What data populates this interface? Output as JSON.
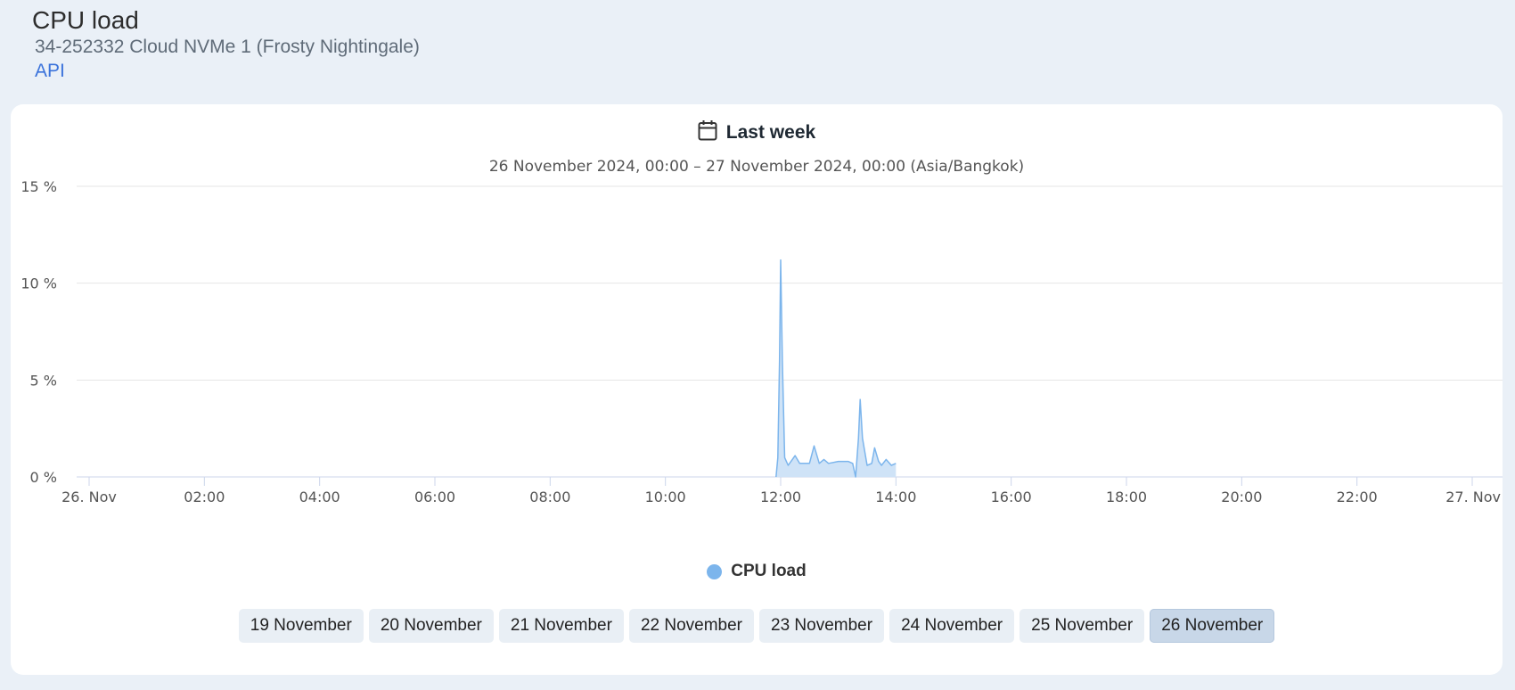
{
  "header": {
    "title": "CPU load",
    "subtitle": "34-252332 Cloud NVMe 1 (Frosty Nightingale)",
    "api_link": "API"
  },
  "range": {
    "icon": "calendar-icon",
    "label": "Last week",
    "sub": "26 November 2024, 00:00 – 27 November 2024, 00:00 (Asia/Bangkok)"
  },
  "colors": {
    "series": "#7cb5ec",
    "series_fill": "#cfe3f7",
    "active_day": "#c8d7e8"
  },
  "chart_data": {
    "type": "area",
    "title": "",
    "xlabel": "",
    "ylabel": "",
    "ylim": [
      0,
      15
    ],
    "xlim": [
      0,
      24
    ],
    "grid": true,
    "legend_placement": "bottom-center",
    "y_ticks": [
      {
        "value": 0,
        "label": "0 %"
      },
      {
        "value": 5,
        "label": "5 %"
      },
      {
        "value": 10,
        "label": "10 %"
      },
      {
        "value": 15,
        "label": "15 %"
      }
    ],
    "x_ticks": [
      {
        "value": 0,
        "label": "26. Nov"
      },
      {
        "value": 2,
        "label": "02:00"
      },
      {
        "value": 4,
        "label": "04:00"
      },
      {
        "value": 6,
        "label": "06:00"
      },
      {
        "value": 8,
        "label": "08:00"
      },
      {
        "value": 10,
        "label": "10:00"
      },
      {
        "value": 12,
        "label": "12:00"
      },
      {
        "value": 14,
        "label": "14:00"
      },
      {
        "value": 16,
        "label": "16:00"
      },
      {
        "value": 18,
        "label": "18:00"
      },
      {
        "value": 20,
        "label": "20:00"
      },
      {
        "value": 22,
        "label": "22:00"
      },
      {
        "value": 24,
        "label": "27. Nov"
      }
    ],
    "series": [
      {
        "name": "CPU load",
        "points": [
          [
            11.92,
            0.0
          ],
          [
            11.95,
            1.0
          ],
          [
            11.98,
            6.0
          ],
          [
            12.0,
            11.2
          ],
          [
            12.03,
            6.0
          ],
          [
            12.07,
            1.0
          ],
          [
            12.13,
            0.6
          ],
          [
            12.25,
            1.1
          ],
          [
            12.33,
            0.7
          ],
          [
            12.5,
            0.7
          ],
          [
            12.58,
            1.6
          ],
          [
            12.67,
            0.7
          ],
          [
            12.75,
            0.9
          ],
          [
            12.83,
            0.7
          ],
          [
            13.0,
            0.8
          ],
          [
            13.17,
            0.8
          ],
          [
            13.25,
            0.7
          ],
          [
            13.3,
            0.0
          ],
          [
            13.35,
            2.0
          ],
          [
            13.38,
            4.0
          ],
          [
            13.42,
            2.0
          ],
          [
            13.5,
            0.6
          ],
          [
            13.58,
            0.7
          ],
          [
            13.63,
            1.5
          ],
          [
            13.7,
            0.8
          ],
          [
            13.75,
            0.6
          ],
          [
            13.83,
            0.9
          ],
          [
            13.92,
            0.6
          ],
          [
            14.0,
            0.7
          ]
        ]
      }
    ]
  },
  "day_buttons": [
    {
      "label": "19 November",
      "active": false
    },
    {
      "label": "20 November",
      "active": false
    },
    {
      "label": "21 November",
      "active": false
    },
    {
      "label": "22 November",
      "active": false
    },
    {
      "label": "23 November",
      "active": false
    },
    {
      "label": "24 November",
      "active": false
    },
    {
      "label": "25 November",
      "active": false
    },
    {
      "label": "26 November",
      "active": true
    }
  ]
}
